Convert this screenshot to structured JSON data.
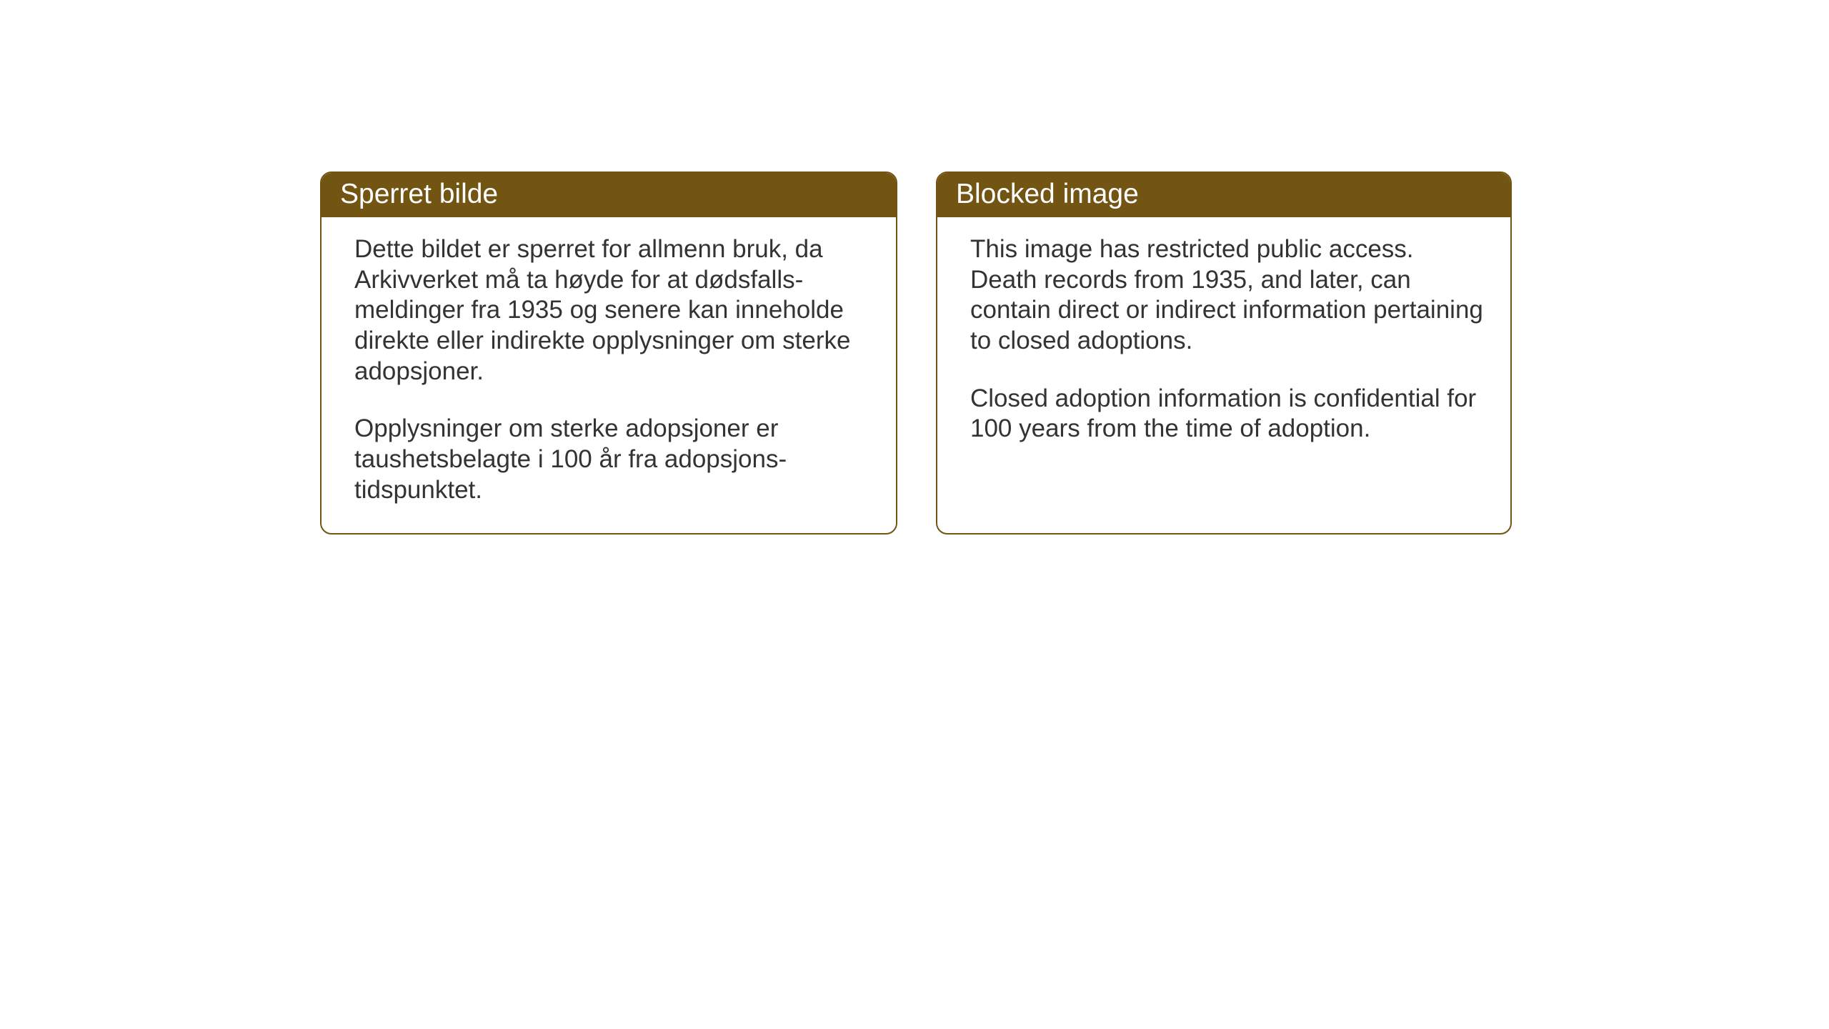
{
  "layout": {
    "background_color": "#ffffff",
    "card_border_color": "#735513",
    "card_header_bg": "#735513",
    "card_header_text_color": "#ffffff",
    "body_text_color": "#333333",
    "header_fontsize": 39,
    "body_fontsize": 35,
    "card_border_radius": 16,
    "card_gap": 54
  },
  "cards": {
    "left": {
      "title": "Sperret bilde",
      "paragraph1": "Dette bildet er sperret for allmenn bruk, da Arkivverket må ta høyde for at dødsfalls-meldinger fra 1935 og senere kan inneholde direkte eller indirekte opplysninger om sterke adopsjoner.",
      "paragraph2": "Opplysninger om sterke adopsjoner er taushetsbelagte i 100 år fra adopsjons-tidspunktet."
    },
    "right": {
      "title": "Blocked image",
      "paragraph1": "This image has restricted public access. Death records from 1935, and later, can contain direct or indirect information pertaining to closed adoptions.",
      "paragraph2": "Closed adoption information is confidential for 100 years from the time of adoption."
    }
  }
}
